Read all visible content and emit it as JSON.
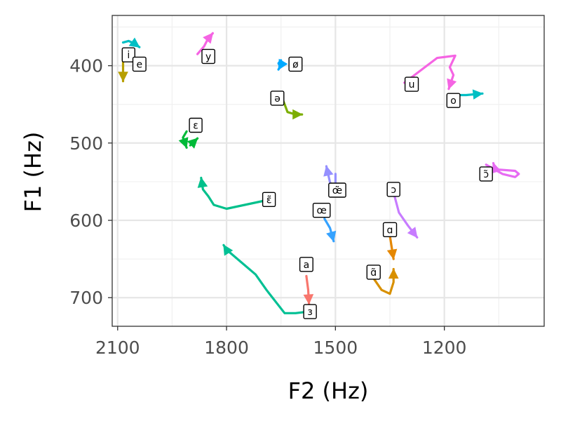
{
  "chart_data": {
    "type": "line",
    "xlabel": "F2 (Hz)",
    "ylabel": "F1 (Hz)",
    "x_reversed": true,
    "y_reversed": true,
    "xlim": [
      2115,
      925
    ],
    "ylim": [
      335,
      737
    ],
    "x_ticks": [
      2100,
      1800,
      1500,
      1200
    ],
    "y_ticks": [
      400,
      500,
      600,
      700
    ],
    "x_minor": [
      1950,
      1650,
      1350,
      1050
    ],
    "y_minor": [
      350,
      450,
      550,
      650
    ],
    "grid": true,
    "legend": "none",
    "series": [
      {
        "vowel": "i",
        "color": "#00BFC4",
        "points": [
          [
            2085,
            370
          ],
          [
            2070,
            368
          ],
          [
            2055,
            371
          ],
          [
            2040,
            376
          ]
        ],
        "label_at": [
          2070,
          386
        ]
      },
      {
        "vowel": "e",
        "color": "#B79F00",
        "points": [
          [
            2085,
            388
          ],
          [
            2085,
            398
          ],
          [
            2085,
            420
          ]
        ],
        "label_at": [
          2040,
          398
        ]
      },
      {
        "vowel": "y",
        "color": "#F564E3",
        "points": [
          [
            1880,
            385
          ],
          [
            1862,
            375
          ],
          [
            1852,
            366
          ],
          [
            1838,
            358
          ]
        ],
        "label_at": [
          1850,
          388
        ]
      },
      {
        "vowel": "ø",
        "color": "#00A9FF",
        "points": [
          [
            1650,
            393
          ],
          [
            1657,
            397
          ],
          [
            1652,
            401
          ],
          [
            1657,
            405
          ]
        ],
        "label_at": [
          1610,
          398
        ]
      },
      {
        "vowel": "ə",
        "color": "#7CAE00",
        "points": [
          [
            1650,
            438
          ],
          [
            1640,
            450
          ],
          [
            1632,
            460
          ],
          [
            1610,
            463
          ],
          [
            1592,
            463
          ]
        ],
        "label_at": [
          1660,
          442
        ]
      },
      {
        "vowel": "ɛ",
        "color": "#00BA38",
        "points": [
          [
            1910,
            485
          ],
          [
            1920,
            493
          ],
          [
            1910,
            506
          ]
        ],
        "label_at": [
          1885,
          477
        ]
      },
      {
        "vowel": "ɛ_arm",
        "color": "#00BA38",
        "points": [
          [
            1900,
            503
          ],
          [
            1880,
            494
          ]
        ],
        "label_at": null
      },
      {
        "vowel": "u",
        "color": "#F564E3",
        "points": [
          [
            1310,
            422
          ],
          [
            1220,
            390
          ],
          [
            1170,
            387
          ],
          [
            1185,
            402
          ],
          [
            1175,
            412
          ],
          [
            1188,
            430
          ]
        ],
        "label_at": [
          1290,
          424
        ]
      },
      {
        "vowel": "o",
        "color": "#00BFC4",
        "points": [
          [
            1185,
            438
          ],
          [
            1140,
            438
          ],
          [
            1095,
            436
          ]
        ],
        "label_at": [
          1175,
          445
        ]
      },
      {
        "vowel": "ɛ̃",
        "color": "#00C08B",
        "points": [
          [
            1700,
            575
          ],
          [
            1800,
            585
          ],
          [
            1835,
            580
          ],
          [
            1850,
            569
          ],
          [
            1865,
            560
          ],
          [
            1870,
            545
          ]
        ],
        "label_at": [
          1683,
          573
        ]
      },
      {
        "vowel": "œ̃",
        "color": "#9590FF",
        "points": [
          [
            1500,
            540
          ],
          [
            1500,
            555
          ],
          [
            1505,
            558
          ],
          [
            1515,
            551
          ],
          [
            1525,
            530
          ]
        ],
        "label_at": [
          1495,
          561
        ]
      },
      {
        "vowel": "ɔ̃",
        "color": "#E76BF3",
        "points": [
          [
            1085,
            528
          ],
          [
            1040,
            540
          ],
          [
            1005,
            544
          ],
          [
            995,
            540
          ],
          [
            1005,
            536
          ],
          [
            1060,
            534
          ],
          [
            1065,
            526
          ]
        ],
        "label_at": [
          1085,
          540
        ]
      },
      {
        "vowel": "œ",
        "color": "#35A2FF",
        "points": [
          [
            1530,
            598
          ],
          [
            1515,
            610
          ],
          [
            1505,
            627
          ]
        ],
        "label_at": [
          1538,
          587
        ]
      },
      {
        "vowel": "ɔ",
        "color": "#C77CFF",
        "points": [
          [
            1345,
            555
          ],
          [
            1325,
            590
          ],
          [
            1300,
            607
          ],
          [
            1275,
            622
          ]
        ],
        "label_at": [
          1340,
          560
        ]
      },
      {
        "vowel": "ɑ",
        "color": "#E58700",
        "points": [
          [
            1350,
            620
          ],
          [
            1345,
            635
          ],
          [
            1340,
            650
          ]
        ],
        "label_at": [
          1350,
          612
        ]
      },
      {
        "vowel": "a",
        "color": "#F8766D",
        "points": [
          [
            1580,
            672
          ],
          [
            1575,
            690
          ],
          [
            1573,
            708
          ]
        ],
        "label_at": [
          1580,
          657
        ]
      },
      {
        "vowel": "ɜ",
        "color": "#00C094",
        "points": [
          [
            1575,
            718
          ],
          [
            1610,
            720
          ],
          [
            1640,
            720
          ],
          [
            1690,
            690
          ],
          [
            1720,
            670
          ],
          [
            1800,
            638
          ],
          [
            1808,
            632
          ]
        ],
        "label_at": [
          1570,
          718
        ]
      },
      {
        "vowel": "ɑ̃",
        "color": "#D89000",
        "points": [
          [
            1395,
            675
          ],
          [
            1373,
            690
          ],
          [
            1350,
            695
          ],
          [
            1340,
            680
          ],
          [
            1340,
            663
          ]
        ],
        "label_at": [
          1395,
          667
        ]
      }
    ]
  }
}
